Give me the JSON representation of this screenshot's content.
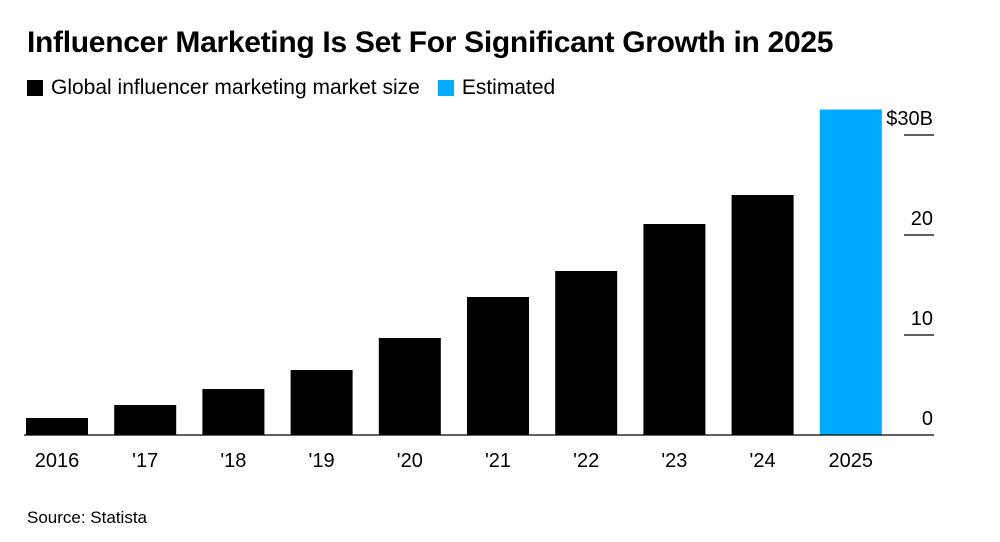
{
  "title": "Influencer Marketing Is Set For Significant Growth in 2025",
  "source": "Source: Statista",
  "legend": [
    {
      "label": "Global influencer marketing market size",
      "color": "#000000"
    },
    {
      "label": "Estimated",
      "color": "#00aaff"
    }
  ],
  "chart_data": {
    "type": "bar",
    "title": "Influencer Marketing Is Set For Significant Growth in 2025",
    "categories": [
      "2016",
      "'17",
      "'18",
      "'19",
      "'20",
      "'21",
      "'22",
      "'23",
      "'24",
      "2025"
    ],
    "values": [
      1.7,
      3.0,
      4.6,
      6.5,
      9.7,
      13.8,
      16.4,
      21.1,
      24.0,
      32.55
    ],
    "estimated": [
      false,
      false,
      false,
      false,
      false,
      false,
      false,
      false,
      false,
      true
    ],
    "colors": {
      "actual": "#000000",
      "estimated": "#00aaff"
    },
    "ylim": [
      0,
      33
    ],
    "yticks": [
      0,
      10,
      20,
      30
    ],
    "ytick_labels": [
      "0",
      "10",
      "20",
      "$30B"
    ],
    "yaxis_position": "right",
    "xlabel": "",
    "ylabel": "",
    "grid": false,
    "legend_position": "top-left"
  }
}
